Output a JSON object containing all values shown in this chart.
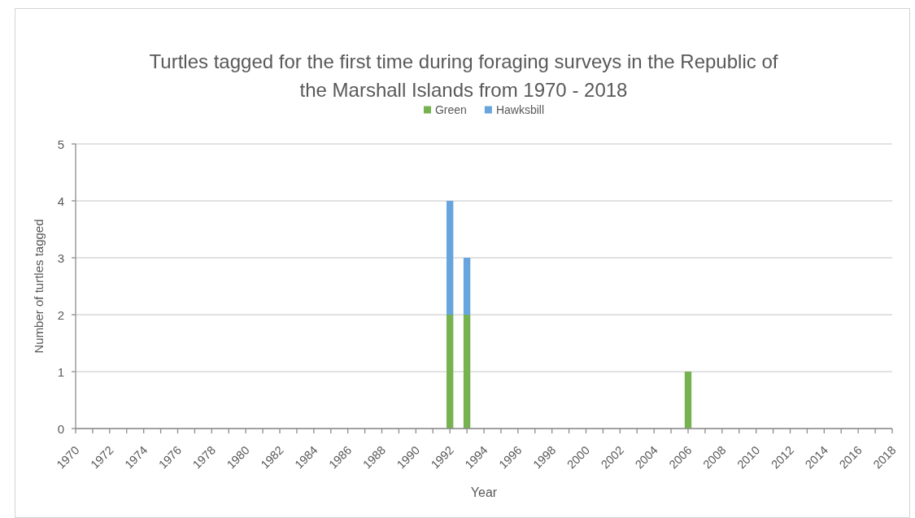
{
  "chart_data": {
    "type": "bar",
    "title": "Turtles tagged for the first time during foraging surveys in the Republic of the Marshall Islands from 1970 - 2018",
    "xlabel": "Year",
    "ylabel": "Number of turtles tagged",
    "x": [
      1992,
      1993,
      2006
    ],
    "stacked": true,
    "series": [
      {
        "name": "Green",
        "color": "#76b24f",
        "values": [
          2,
          2,
          1
        ]
      },
      {
        "name": "Hawksbill",
        "color": "#67a5dc",
        "values": [
          2,
          1,
          null
        ]
      }
    ],
    "xlim": [
      1970,
      2018
    ],
    "xticks": [
      1970,
      {
        "value": 1971,
        "label": null
      },
      1972,
      {
        "value": 1973,
        "label": null
      },
      1974,
      {
        "value": 1975,
        "label": null
      },
      1976,
      {
        "value": 1977,
        "label": null
      },
      1978,
      {
        "value": 1979,
        "label": null
      },
      1980,
      {
        "value": 1981,
        "label": null
      },
      1982,
      {
        "value": 1983,
        "label": null
      },
      1984,
      {
        "value": 1985,
        "label": null
      },
      1986,
      {
        "value": 1987,
        "label": null
      },
      1988,
      {
        "value": 1989,
        "label": null
      },
      1990,
      {
        "value": 1991,
        "label": null
      },
      1992,
      {
        "value": 1993,
        "label": null
      },
      1994,
      {
        "value": 1995,
        "label": null
      },
      1996,
      {
        "value": 1997,
        "label": null
      },
      1998,
      {
        "value": 1999,
        "label": null
      },
      2000,
      {
        "value": 2001,
        "label": null
      },
      2002,
      {
        "value": 2003,
        "label": null
      },
      2004,
      {
        "value": 2005,
        "label": null
      },
      2006,
      {
        "value": 2007,
        "label": null
      },
      2008,
      {
        "value": 2009,
        "label": null
      },
      2010,
      {
        "value": 2011,
        "label": null
      },
      2012,
      {
        "value": 2013,
        "label": null
      },
      2014,
      {
        "value": 2015,
        "label": null
      },
      2016,
      {
        "value": 2017,
        "label": null
      },
      2018
    ],
    "ylim": [
      0,
      5
    ],
    "yticks": [
      0,
      1,
      2,
      3,
      4,
      5
    ],
    "grid": "y",
    "legend": "top"
  }
}
